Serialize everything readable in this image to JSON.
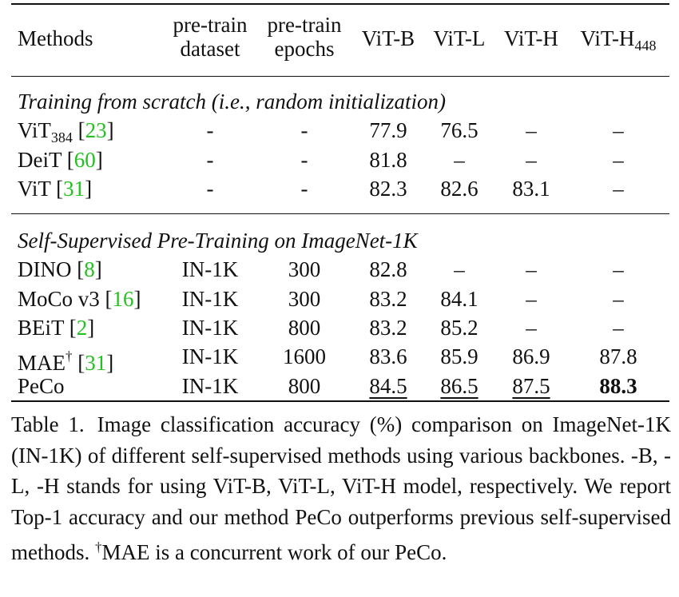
{
  "header": {
    "methods": "Methods",
    "pretrain_dataset": [
      "pre-train",
      "dataset"
    ],
    "pretrain_epochs": [
      "pre-train",
      "epochs"
    ],
    "vit_b": "ViT-B",
    "vit_l": "ViT-L",
    "vit_h": "ViT-H",
    "vit_h448_base": "ViT-H",
    "vit_h448_sub": "448"
  },
  "sections": [
    {
      "title": "Training from scratch (i.e., random initialization)",
      "rows": [
        {
          "name": "ViT",
          "sub": "384",
          "cite": "23",
          "dataset": "-",
          "epochs": "-",
          "b": "77.9",
          "l": "76.5",
          "h": "–",
          "h448": "–"
        },
        {
          "name": "DeiT",
          "cite": "60",
          "dataset": "-",
          "epochs": "-",
          "b": "81.8",
          "l": "–",
          "h": "–",
          "h448": "–"
        },
        {
          "name": "ViT",
          "cite": "31",
          "dataset": "-",
          "epochs": "-",
          "b": "82.3",
          "l": "82.6",
          "h": "83.1",
          "h448": "–"
        }
      ]
    },
    {
      "title": "Self-Supervised Pre-Training on ImageNet-1K",
      "rows": [
        {
          "name": "DINO",
          "cite": "8",
          "dataset": "IN-1K",
          "epochs": "300",
          "b": "82.8",
          "l": "–",
          "h": "–",
          "h448": "–"
        },
        {
          "name": "MoCo v3",
          "cite": "16",
          "dataset": "IN-1K",
          "epochs": "300",
          "b": "83.2",
          "l": "84.1",
          "h": "–",
          "h448": "–"
        },
        {
          "name": "BEiT",
          "cite": "2",
          "dataset": "IN-1K",
          "epochs": "800",
          "b": "83.2",
          "l": "85.2",
          "h": "–",
          "h448": "–"
        },
        {
          "name": "MAE",
          "sup": "†",
          "cite": "31",
          "dataset": "IN-1K",
          "epochs": "1600",
          "b": "83.6",
          "l": "85.9",
          "h": "86.9",
          "h448": "87.8"
        },
        {
          "name": "PeCo",
          "dataset": "IN-1K",
          "epochs": "800",
          "b": "84.5",
          "l": "86.5",
          "h": "87.5",
          "h448": "88.3",
          "underline": [
            "b",
            "l",
            "h"
          ],
          "bold": [
            "h448"
          ]
        }
      ]
    }
  ],
  "caption": {
    "label": "Table 1.",
    "text": "Image classification accuracy (%) comparison on ImageNet-1K (IN-1K) of different self-supervised methods using various backbones. -B, -L, -H stands for using ViT-B, ViT-L, ViT-H model, respectively. We report Top-1 accuracy and our method PeCo outperforms previous self-supervised methods.",
    "note_mark": "†",
    "note": "MAE is a concurrent work of our PeCo."
  }
}
